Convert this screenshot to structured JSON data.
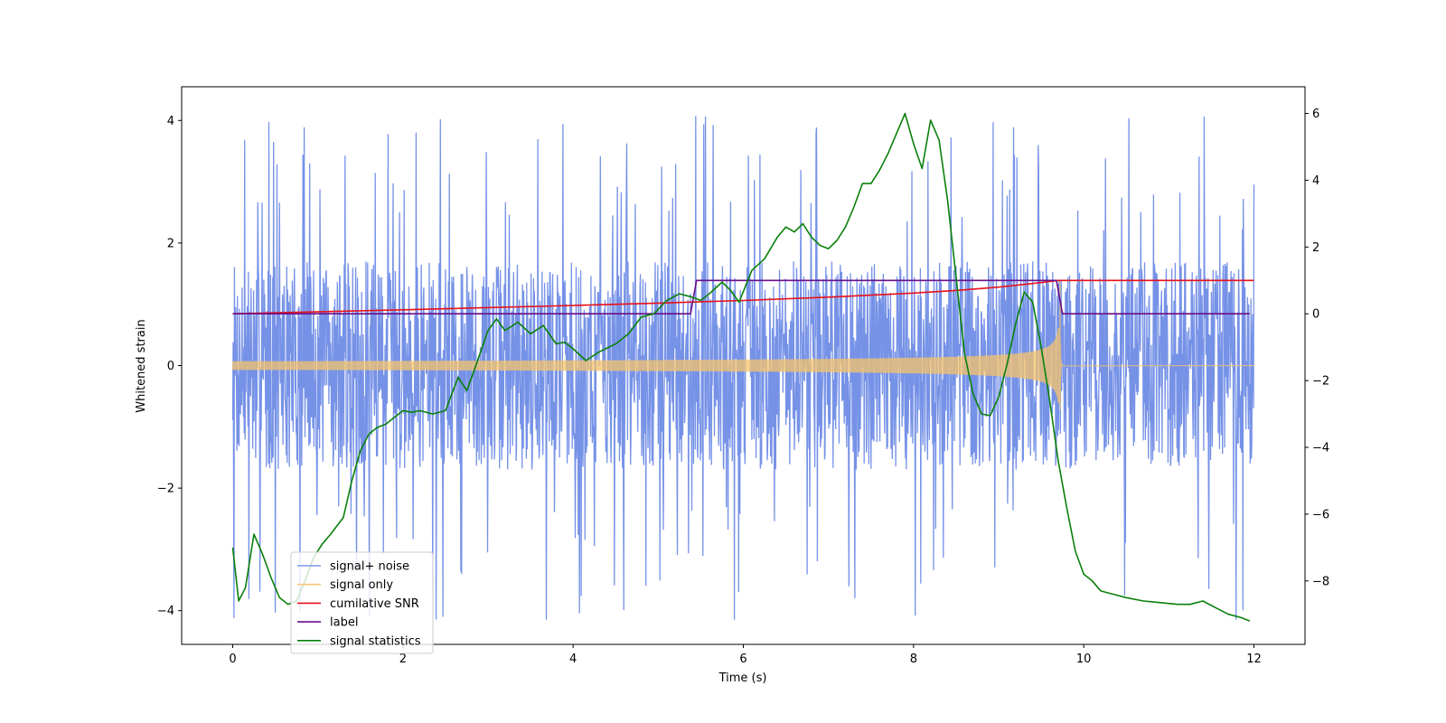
{
  "chart_data": {
    "type": "line",
    "title": "",
    "xlabel": "Time (s)",
    "ylabel": "Whitened strain",
    "xlim": [
      -0.6,
      12.6
    ],
    "ylim": [
      -4.55,
      4.55
    ],
    "y2lim": [
      -9.9,
      6.8
    ],
    "grid": false,
    "legend_position": "lower-left",
    "xticks": [
      0,
      2,
      4,
      6,
      8,
      10,
      12
    ],
    "yticks": [
      -4,
      -2,
      0,
      2,
      4
    ],
    "y2ticks": [
      -8,
      -6,
      -4,
      -2,
      0,
      2,
      4,
      6
    ],
    "series": [
      {
        "name": "signal+ noise",
        "axis": "left",
        "color": "#6f8ce6",
        "kind": "noise-band",
        "x_range": [
          0,
          12
        ],
        "typical_amplitude": 1.7,
        "peak_amplitude": 4.15
      },
      {
        "name": "signal only",
        "axis": "left",
        "color": "#f5c36b",
        "kind": "chirp",
        "x_range": [
          0,
          9.75
        ],
        "start_amplitude": 0.07,
        "merger_time": 9.72,
        "peak_amplitude": 1.6,
        "post_merger_value": 0
      },
      {
        "name": "cumilative SNR",
        "axis": "right",
        "color": "#e8111a",
        "x": [
          0,
          2,
          4,
          5,
          6,
          7,
          8,
          8.5,
          9,
          9.3,
          9.55,
          9.7,
          9.75,
          12
        ],
        "y": [
          0,
          0.12,
          0.25,
          0.32,
          0.4,
          0.5,
          0.62,
          0.7,
          0.8,
          0.88,
          0.95,
          1.0,
          1.0,
          1.0
        ]
      },
      {
        "name": "label",
        "axis": "right",
        "color": "#6a0f8a",
        "x": [
          0,
          5.38,
          5.45,
          9.68,
          9.75,
          11.95
        ],
        "y": [
          0,
          0,
          1,
          1,
          0,
          0
        ]
      },
      {
        "name": "signal statistics",
        "axis": "right",
        "color": "#0a800a",
        "x": [
          0,
          0.07,
          0.15,
          0.25,
          0.35,
          0.45,
          0.55,
          0.65,
          0.75,
          0.85,
          0.95,
          1.05,
          1.15,
          1.3,
          1.4,
          1.5,
          1.6,
          1.7,
          1.8,
          1.9,
          2.0,
          2.1,
          2.2,
          2.35,
          2.5,
          2.65,
          2.75,
          2.85,
          3.0,
          3.1,
          3.2,
          3.35,
          3.5,
          3.65,
          3.8,
          3.9,
          4.0,
          4.15,
          4.3,
          4.5,
          4.65,
          4.8,
          4.95,
          5.1,
          5.25,
          5.4,
          5.5,
          5.6,
          5.75,
          5.85,
          5.95,
          6.1,
          6.25,
          6.4,
          6.5,
          6.6,
          6.7,
          6.8,
          6.9,
          7.0,
          7.1,
          7.2,
          7.3,
          7.4,
          7.5,
          7.6,
          7.7,
          7.8,
          7.9,
          8.0,
          8.1,
          8.2,
          8.3,
          8.4,
          8.5,
          8.6,
          8.7,
          8.8,
          8.9,
          9.0,
          9.1,
          9.2,
          9.3,
          9.4,
          9.5,
          9.6,
          9.7,
          9.8,
          9.9,
          10.0,
          10.1,
          10.2,
          10.35,
          10.5,
          10.7,
          10.9,
          11.1,
          11.25,
          11.4,
          11.55,
          11.7,
          11.85,
          11.95
        ],
        "y": [
          -7.0,
          -8.6,
          -8.2,
          -6.6,
          -7.2,
          -7.9,
          -8.5,
          -8.7,
          -8.6,
          -8.0,
          -7.3,
          -6.9,
          -6.6,
          -6.1,
          -5.0,
          -4.1,
          -3.6,
          -3.4,
          -3.3,
          -3.1,
          -2.9,
          -2.95,
          -2.9,
          -3.0,
          -2.9,
          -1.9,
          -2.3,
          -1.6,
          -0.5,
          -0.15,
          -0.5,
          -0.25,
          -0.6,
          -0.35,
          -0.9,
          -0.85,
          -1.05,
          -1.4,
          -1.15,
          -0.9,
          -0.6,
          -0.1,
          0.0,
          0.4,
          0.6,
          0.5,
          0.4,
          0.6,
          0.95,
          0.7,
          0.35,
          1.3,
          1.65,
          2.3,
          2.6,
          2.45,
          2.7,
          2.3,
          2.05,
          1.95,
          2.2,
          2.6,
          3.2,
          3.9,
          3.9,
          4.3,
          4.8,
          5.4,
          6.0,
          5.1,
          4.35,
          5.8,
          5.2,
          3.4,
          1.1,
          -1.2,
          -2.4,
          -3.0,
          -3.05,
          -2.5,
          -1.5,
          -0.3,
          0.65,
          0.35,
          -1.0,
          -2.6,
          -4.4,
          -5.8,
          -7.1,
          -7.8,
          -8.0,
          -8.3,
          -8.4,
          -8.5,
          -8.6,
          -8.65,
          -8.7,
          -8.7,
          -8.6,
          -8.8,
          -9.0,
          -9.1,
          -9.2
        ]
      }
    ]
  }
}
